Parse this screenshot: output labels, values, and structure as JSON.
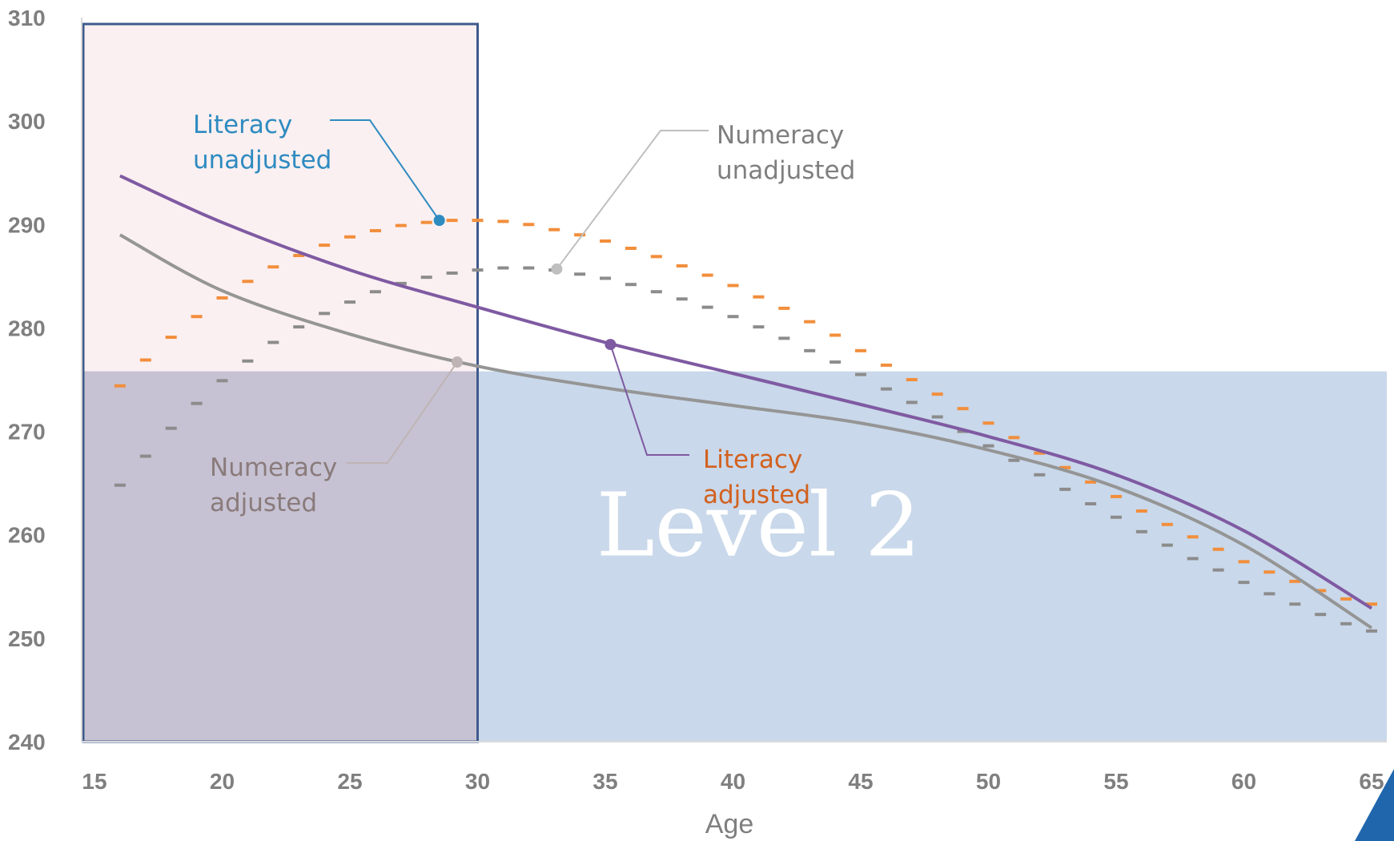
{
  "chart_data": {
    "type": "line",
    "xlabel": "Age",
    "ylabel": "",
    "xlim": [
      15,
      65
    ],
    "ylim": [
      240,
      310
    ],
    "x_ticks": [
      15,
      20,
      25,
      30,
      35,
      40,
      45,
      50,
      55,
      60,
      65
    ],
    "y_ticks": [
      240,
      250,
      260,
      270,
      280,
      290,
      300,
      310
    ],
    "grid": false,
    "regions": [
      {
        "label": "",
        "x_range": [
          15,
          30
        ],
        "y_range": [
          240,
          310
        ],
        "color": "#f7e4e6",
        "border": "#3f5a8c"
      },
      {
        "label": "Level 2",
        "x_range": [
          15,
          65
        ],
        "y_range": [
          240,
          275.8
        ],
        "color": "#c9d8ea"
      }
    ],
    "series": [
      {
        "name": "Literacy unadjusted",
        "style": "dashed",
        "color": "#f28e3c",
        "x": [
          16,
          17,
          18,
          19,
          20,
          21,
          22,
          23,
          24,
          25,
          26,
          27,
          28,
          29,
          30,
          31,
          32,
          33,
          34,
          35,
          36,
          37,
          38,
          39,
          40,
          41,
          42,
          43,
          44,
          45,
          46,
          47,
          48,
          49,
          50,
          51,
          52,
          53,
          54,
          55,
          56,
          57,
          58,
          59,
          60,
          61,
          62,
          63,
          64,
          65
        ],
        "values": [
          274.4,
          276.9,
          279.1,
          281.1,
          282.9,
          284.5,
          285.9,
          287.0,
          288.0,
          288.8,
          289.4,
          289.9,
          290.2,
          290.4,
          290.4,
          290.3,
          290.0,
          289.5,
          289.0,
          288.4,
          287.7,
          286.9,
          286.0,
          285.1,
          284.1,
          283.0,
          281.9,
          280.6,
          279.3,
          277.8,
          276.4,
          275.0,
          273.6,
          272.2,
          270.8,
          269.4,
          267.9,
          266.5,
          265.1,
          263.7,
          262.3,
          261.0,
          259.8,
          258.6,
          257.4,
          256.4,
          255.5,
          254.6,
          253.8,
          253.3
        ]
      },
      {
        "name": "Numeracy unadjusted",
        "style": "dashed",
        "color": "#8c8c8c",
        "x": [
          16,
          17,
          18,
          19,
          20,
          21,
          22,
          23,
          24,
          25,
          26,
          27,
          28,
          29,
          30,
          31,
          32,
          33,
          34,
          35,
          36,
          37,
          38,
          39,
          40,
          41,
          42,
          43,
          44,
          45,
          46,
          47,
          48,
          49,
          50,
          51,
          52,
          53,
          54,
          55,
          56,
          57,
          58,
          59,
          60,
          61,
          62,
          63,
          64,
          65
        ],
        "values": [
          264.8,
          267.6,
          270.3,
          272.7,
          274.9,
          276.8,
          278.6,
          280.1,
          281.4,
          282.5,
          283.5,
          284.3,
          284.9,
          285.3,
          285.6,
          285.8,
          285.8,
          285.6,
          285.2,
          284.8,
          284.2,
          283.5,
          282.8,
          282.0,
          281.1,
          280.1,
          279.0,
          277.8,
          276.7,
          275.5,
          274.1,
          272.8,
          271.4,
          270.0,
          268.6,
          267.2,
          265.8,
          264.4,
          263.0,
          261.7,
          260.3,
          259.0,
          257.7,
          256.6,
          255.4,
          254.3,
          253.3,
          252.3,
          251.4,
          250.7
        ]
      },
      {
        "name": "Literacy adjusted",
        "style": "solid",
        "color": "#7f5aa2",
        "x": [
          16,
          20,
          25,
          30,
          35,
          40,
          45,
          50,
          55,
          60,
          65
        ],
        "values": [
          294.7,
          290.2,
          285.6,
          282.0,
          278.6,
          275.6,
          272.6,
          269.5,
          265.8,
          260.4,
          252.9
        ]
      },
      {
        "name": "Numeracy adjusted",
        "style": "solid",
        "color": "#959595",
        "x": [
          16,
          20,
          25,
          30,
          35,
          40,
          45,
          50,
          55,
          60,
          65
        ],
        "values": [
          289.0,
          283.6,
          279.4,
          276.3,
          274.2,
          272.5,
          270.8,
          268.2,
          264.6,
          259.0,
          251.0
        ]
      }
    ],
    "annotations": [
      {
        "text_lines": [
          "Literacy",
          "unadjusted"
        ],
        "color": "#2e8bc0",
        "point_color": "#2e8bc0",
        "point": [
          28.5,
          290.4
        ]
      },
      {
        "text_lines": [
          "Numeracy",
          "unadjusted"
        ],
        "color": "#7f7f7f",
        "point_color": "#bfbfbf",
        "point": [
          33.1,
          285.7
        ]
      },
      {
        "text_lines": [
          "Numeracy",
          "adjusted"
        ],
        "color": "#8a7b7b",
        "point_color": "#bfb4b4",
        "point": [
          29.2,
          276.7
        ]
      },
      {
        "text_lines": [
          "Literacy",
          "adjusted"
        ],
        "color": "#d2611f",
        "point_color": "#7f5aa2",
        "point": [
          35.2,
          278.4
        ]
      }
    ]
  },
  "decor": {
    "corner_triangle_color": "#1f66ad"
  }
}
